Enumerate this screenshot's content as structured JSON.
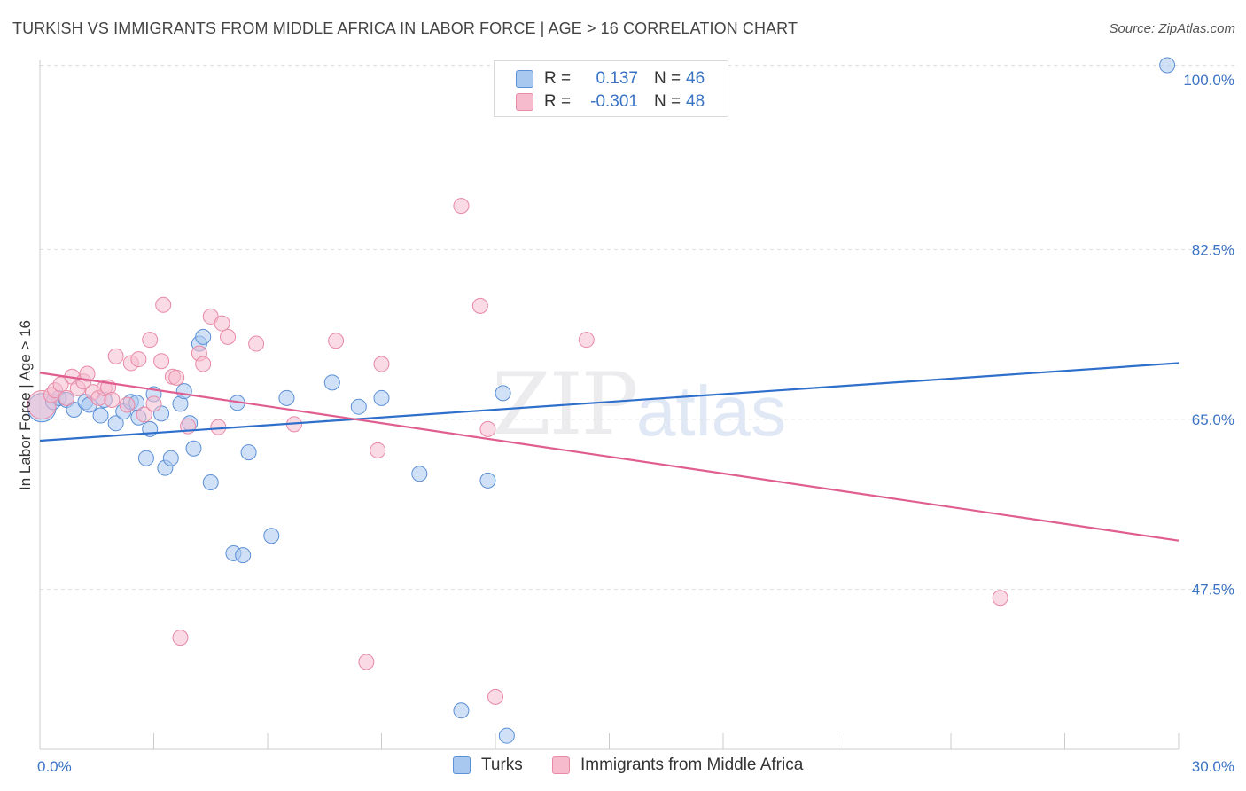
{
  "title": "TURKISH VS IMMIGRANTS FROM MIDDLE AFRICA IN LABOR FORCE | AGE > 16 CORRELATION CHART",
  "source": "Source: ZipAtlas.com",
  "watermark": {
    "zip": "ZIP",
    "atlas": "atlas"
  },
  "legend": {
    "rows": [
      {
        "r_label": "R =",
        "r_value": "0.137",
        "n_label": "N =",
        "n_value": "46"
      },
      {
        "r_label": "R =",
        "r_value": "-0.301",
        "n_label": "N =",
        "n_value": "48"
      }
    ]
  },
  "bottom_legend": {
    "turks": "Turks",
    "immigrants": "Immigrants from Middle Africa"
  },
  "colors": {
    "turks_fill": "#a9c8f0",
    "turks_stroke": "#5b8fd6",
    "turks_line": "#2f6fcc",
    "imm_fill": "#f6bccd",
    "imm_stroke": "#e889a6",
    "imm_line": "#e05e8f",
    "grid": "#dddddd",
    "axis_label": "#3b73c4"
  },
  "chart_data": {
    "type": "scatter",
    "title": "TURKISH VS IMMIGRANTS FROM MIDDLE AFRICA IN LABOR FORCE | AGE > 16 CORRELATION CHART",
    "xlabel": "",
    "ylabel": "In Labor Force | Age > 16",
    "xlim": [
      0,
      30
    ],
    "ylim": [
      31,
      102
    ],
    "x_tick_labels": [
      "0.0%",
      "30.0%"
    ],
    "y_ticks": [
      47.5,
      65.0,
      82.5,
      100.0
    ],
    "y_tick_labels": [
      "47.5%",
      "65.0%",
      "82.5%",
      "100.0%"
    ],
    "grid": true,
    "series": [
      {
        "name": "Turks",
        "r": 0.137,
        "n": 46,
        "trend": {
          "x": [
            0,
            30
          ],
          "y": [
            62.8,
            70.8
          ]
        },
        "points": [
          {
            "x": 0.05,
            "y": 66.2,
            "s": 16
          },
          {
            "x": 0.35,
            "y": 66.8
          },
          {
            "x": 0.5,
            "y": 67.2
          },
          {
            "x": 0.7,
            "y": 67.0
          },
          {
            "x": 0.9,
            "y": 66.0
          },
          {
            "x": 1.2,
            "y": 66.8
          },
          {
            "x": 1.3,
            "y": 66.5
          },
          {
            "x": 1.6,
            "y": 65.4
          },
          {
            "x": 1.7,
            "y": 67.0
          },
          {
            "x": 2.0,
            "y": 64.6
          },
          {
            "x": 2.2,
            "y": 65.8
          },
          {
            "x": 2.4,
            "y": 66.8
          },
          {
            "x": 2.55,
            "y": 66.7
          },
          {
            "x": 2.6,
            "y": 65.2
          },
          {
            "x": 2.8,
            "y": 61.0
          },
          {
            "x": 2.9,
            "y": 64.0
          },
          {
            "x": 3.0,
            "y": 67.6
          },
          {
            "x": 3.2,
            "y": 65.6
          },
          {
            "x": 3.3,
            "y": 60.0
          },
          {
            "x": 3.45,
            "y": 61.0
          },
          {
            "x": 3.7,
            "y": 66.6
          },
          {
            "x": 3.8,
            "y": 67.9
          },
          {
            "x": 3.95,
            "y": 64.6
          },
          {
            "x": 4.05,
            "y": 62.0
          },
          {
            "x": 4.2,
            "y": 72.8
          },
          {
            "x": 4.3,
            "y": 73.5
          },
          {
            "x": 4.5,
            "y": 58.5
          },
          {
            "x": 5.2,
            "y": 66.7
          },
          {
            "x": 5.5,
            "y": 61.6
          },
          {
            "x": 5.1,
            "y": 51.2
          },
          {
            "x": 5.35,
            "y": 51.0
          },
          {
            "x": 6.1,
            "y": 53.0
          },
          {
            "x": 6.5,
            "y": 67.2
          },
          {
            "x": 7.7,
            "y": 68.8
          },
          {
            "x": 8.4,
            "y": 66.3
          },
          {
            "x": 9.0,
            "y": 67.2
          },
          {
            "x": 10.0,
            "y": 59.4
          },
          {
            "x": 11.8,
            "y": 58.7
          },
          {
            "x": 12.2,
            "y": 67.7
          },
          {
            "x": 11.1,
            "y": 35.0
          },
          {
            "x": 12.3,
            "y": 32.4
          },
          {
            "x": 29.7,
            "y": 101.5
          }
        ]
      },
      {
        "name": "Immigrants from Middle Africa",
        "r": -0.301,
        "n": 48,
        "trend": {
          "x": [
            0,
            30
          ],
          "y": [
            69.8,
            52.5
          ]
        },
        "points": [
          {
            "x": 0.05,
            "y": 66.5,
            "s": 16
          },
          {
            "x": 0.3,
            "y": 67.5
          },
          {
            "x": 0.4,
            "y": 68.0
          },
          {
            "x": 0.55,
            "y": 68.6
          },
          {
            "x": 0.7,
            "y": 67.2
          },
          {
            "x": 0.85,
            "y": 69.4
          },
          {
            "x": 1.0,
            "y": 68.2
          },
          {
            "x": 1.15,
            "y": 68.9
          },
          {
            "x": 1.25,
            "y": 69.7
          },
          {
            "x": 1.4,
            "y": 67.8
          },
          {
            "x": 1.55,
            "y": 67.2
          },
          {
            "x": 1.7,
            "y": 68.2
          },
          {
            "x": 1.8,
            "y": 68.3
          },
          {
            "x": 1.9,
            "y": 67.0
          },
          {
            "x": 2.0,
            "y": 71.5
          },
          {
            "x": 2.3,
            "y": 66.5
          },
          {
            "x": 2.4,
            "y": 70.8
          },
          {
            "x": 2.6,
            "y": 71.2
          },
          {
            "x": 2.75,
            "y": 65.5
          },
          {
            "x": 2.9,
            "y": 73.2
          },
          {
            "x": 3.0,
            "y": 66.6
          },
          {
            "x": 3.2,
            "y": 71.0
          },
          {
            "x": 3.25,
            "y": 76.8
          },
          {
            "x": 3.5,
            "y": 69.4
          },
          {
            "x": 3.6,
            "y": 69.3
          },
          {
            "x": 3.7,
            "y": 42.5
          },
          {
            "x": 3.9,
            "y": 64.3
          },
          {
            "x": 4.2,
            "y": 71.8
          },
          {
            "x": 4.3,
            "y": 70.7
          },
          {
            "x": 4.5,
            "y": 75.6
          },
          {
            "x": 4.7,
            "y": 64.2
          },
          {
            "x": 4.8,
            "y": 74.9
          },
          {
            "x": 4.95,
            "y": 73.5
          },
          {
            "x": 5.7,
            "y": 72.8
          },
          {
            "x": 6.7,
            "y": 64.5
          },
          {
            "x": 7.8,
            "y": 73.1
          },
          {
            "x": 8.6,
            "y": 40.0
          },
          {
            "x": 8.9,
            "y": 61.8
          },
          {
            "x": 9.0,
            "y": 70.7
          },
          {
            "x": 11.1,
            "y": 87.0
          },
          {
            "x": 11.6,
            "y": 76.7
          },
          {
            "x": 11.8,
            "y": 64.0
          },
          {
            "x": 12.0,
            "y": 36.4
          },
          {
            "x": 14.4,
            "y": 73.2
          },
          {
            "x": 25.3,
            "y": 46.6
          }
        ]
      }
    ]
  }
}
